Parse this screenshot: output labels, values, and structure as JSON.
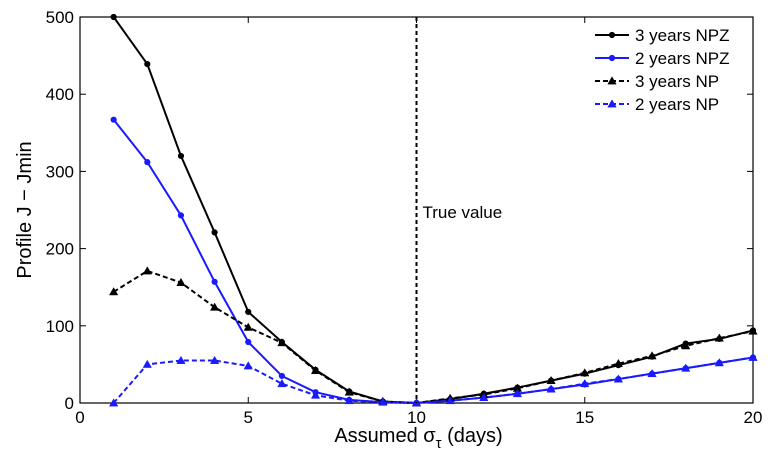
{
  "chart_data": {
    "type": "line",
    "xlabel": "Assumed σ",
    "xlabel_sub": "τ",
    "xlabel_suffix": " (days)",
    "ylabel": "Profile J − Jmin",
    "xlim": [
      0,
      20
    ],
    "ylim": [
      0,
      500
    ],
    "xticks": [
      0,
      5,
      10,
      15,
      20
    ],
    "yticks": [
      0,
      100,
      200,
      300,
      400,
      500
    ],
    "grid": false,
    "legend_position": "top-right",
    "annotation": {
      "text": "True value",
      "x": 10
    },
    "colors": {
      "black": "#000000",
      "blue": "#1a1aff"
    },
    "x": [
      1,
      2,
      3,
      4,
      5,
      6,
      7,
      8,
      9,
      10,
      11,
      12,
      13,
      14,
      15,
      16,
      17,
      18,
      19,
      20
    ],
    "series": [
      {
        "name": "3 years NPZ",
        "color": "#000000",
        "dash": "solid",
        "marker": "circle",
        "values": [
          500,
          439,
          320,
          221,
          118,
          79,
          43,
          15,
          2,
          0,
          5,
          12,
          20,
          29,
          38,
          49,
          60,
          77,
          83,
          94
        ]
      },
      {
        "name": "2 years NPZ",
        "color": "#1a1aff",
        "dash": "solid",
        "marker": "circle",
        "values": [
          367,
          312,
          243,
          157,
          79,
          35,
          14,
          4,
          1,
          0,
          3,
          7,
          12,
          18,
          24,
          31,
          38,
          45,
          52,
          59
        ]
      },
      {
        "name": "3 years NP",
        "color": "#000000",
        "dash": "dashed",
        "marker": "triangle",
        "values": [
          144,
          171,
          156,
          124,
          98,
          78,
          42,
          14,
          2,
          0,
          6,
          11,
          19,
          29,
          39,
          51,
          61,
          74,
          84,
          93
        ]
      },
      {
        "name": "2 years NP",
        "color": "#1a1aff",
        "dash": "dashed",
        "marker": "triangle",
        "values": [
          0,
          50,
          55,
          55,
          48,
          25,
          10,
          3,
          1,
          0,
          3,
          7,
          12,
          18,
          25,
          31,
          38,
          45,
          52,
          59
        ]
      }
    ]
  }
}
